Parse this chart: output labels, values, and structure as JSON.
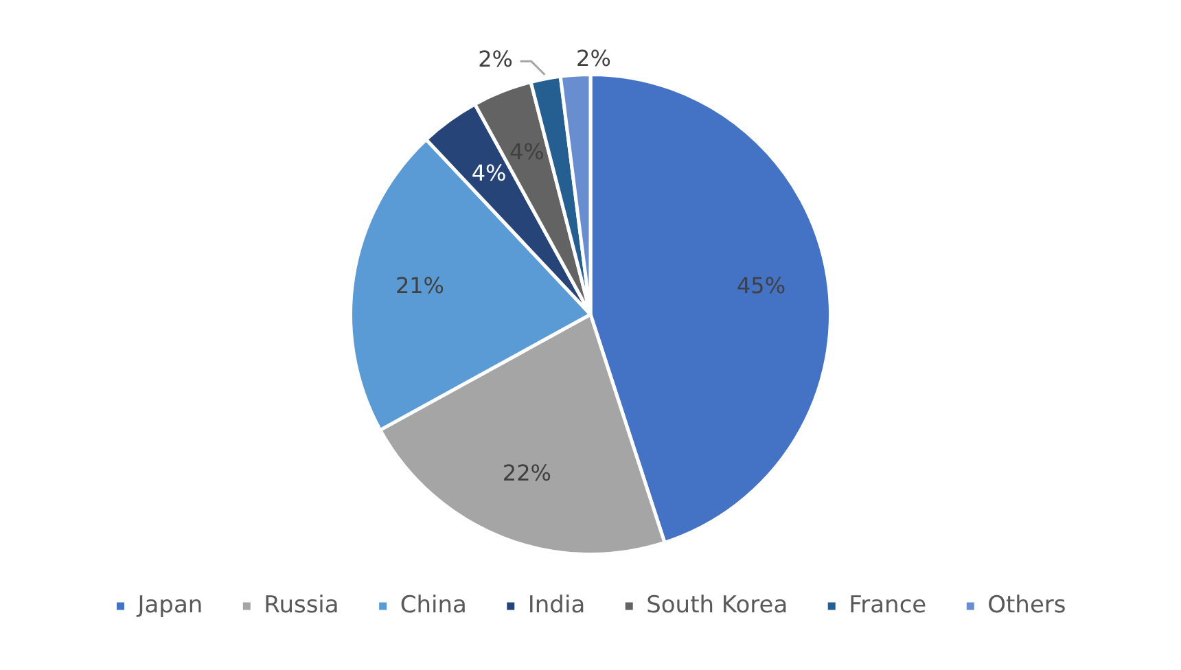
{
  "chart_data": {
    "type": "pie",
    "categories": [
      "Japan",
      "Russia",
      "China",
      "India",
      "South Korea",
      "France",
      "Others"
    ],
    "values": [
      45,
      22,
      21,
      4,
      4,
      2,
      2
    ],
    "colors": [
      "#4472c4",
      "#a5a5a5",
      "#5b9bd5",
      "#264478",
      "#636363",
      "#255e91",
      "#698ed0"
    ],
    "value_labels": [
      "45%",
      "22%",
      "21%",
      "4%",
      "4%",
      "2%",
      "2%"
    ],
    "legend": "bottom"
  }
}
